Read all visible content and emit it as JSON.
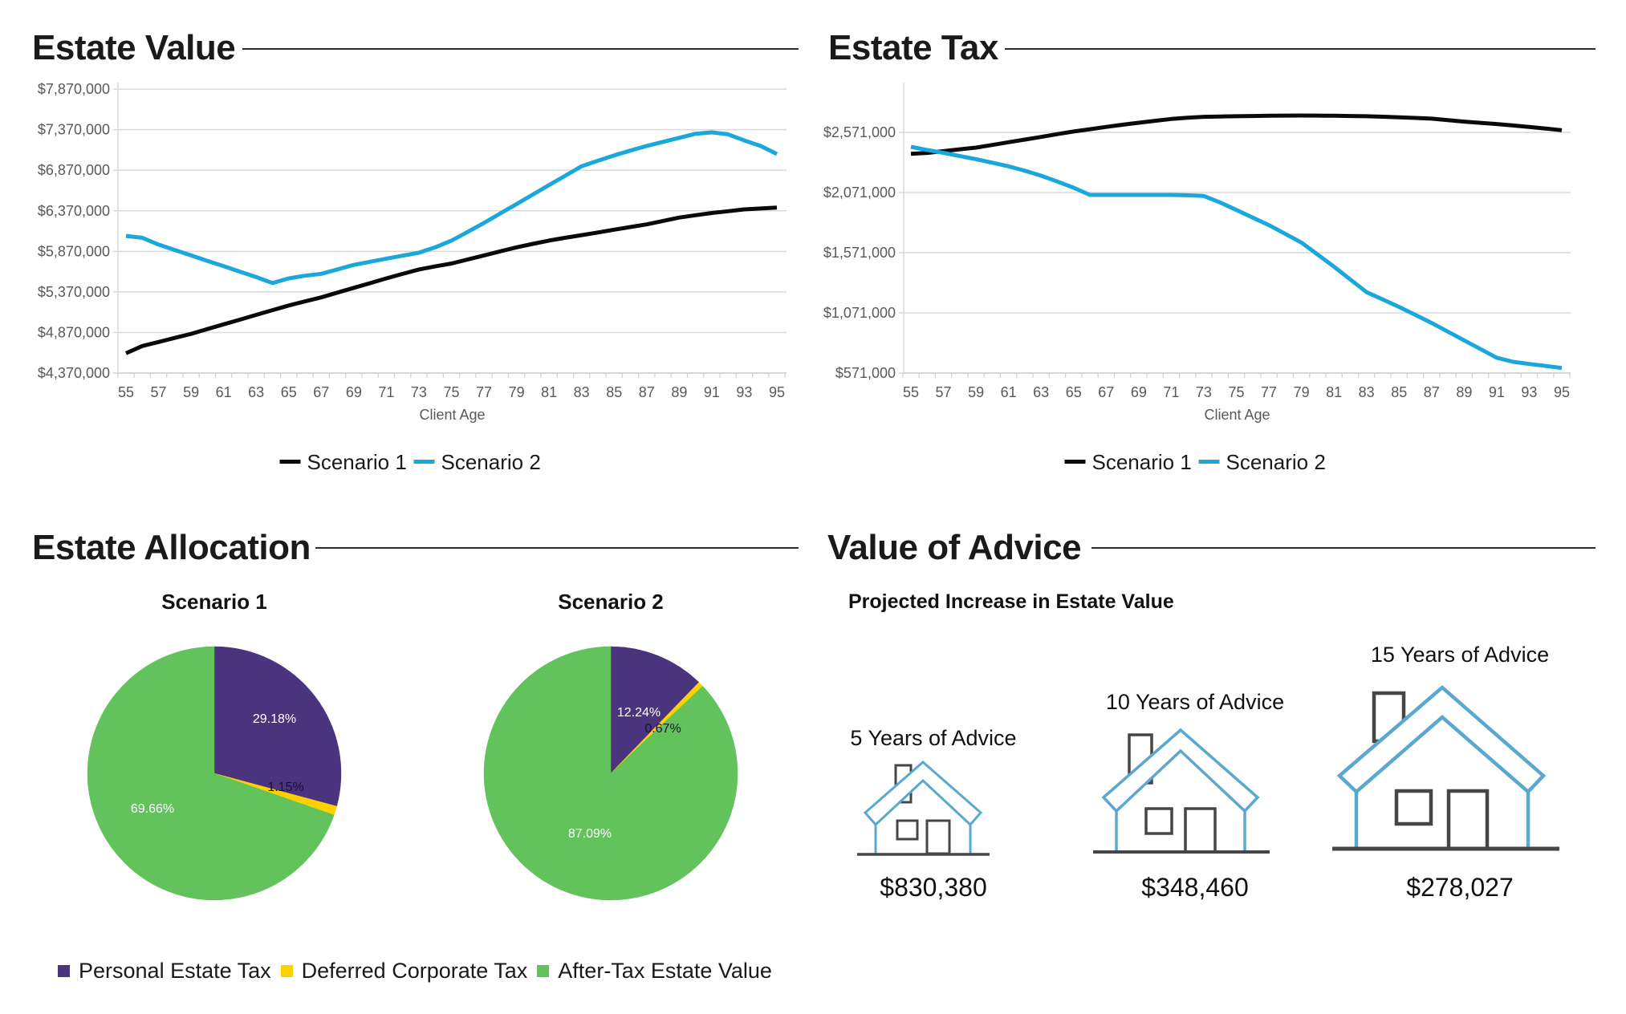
{
  "sections": {
    "estate_value": {
      "title": "Estate Value"
    },
    "estate_tax": {
      "title": "Estate Tax"
    },
    "estate_allocation": {
      "title": "Estate Allocation"
    },
    "value_of_advice": {
      "title": "Value of Advice",
      "subtitle": "Projected Increase in Estate Value"
    }
  },
  "colors": {
    "scenario_1": "#0a0a0a",
    "scenario_2": "#1aa7dc",
    "personal_estate_tax": "#4b347e",
    "deferred_corporate_tax": "#ffd000",
    "after_tax_estate_value": "#62c25b",
    "house_outline": "#5aa8cf",
    "house_detail": "#464646"
  },
  "chart_data": [
    {
      "id": "estate_value",
      "type": "line",
      "title": "Estate Value",
      "xlabel": "Client Age",
      "ylabel": "",
      "x": [
        55,
        56,
        57,
        58,
        59,
        60,
        61,
        62,
        63,
        64,
        65,
        66,
        67,
        68,
        69,
        70,
        71,
        72,
        73,
        74,
        75,
        76,
        77,
        78,
        79,
        80,
        81,
        82,
        83,
        84,
        85,
        86,
        87,
        88,
        89,
        90,
        91,
        92,
        93,
        94,
        95
      ],
      "xticks": [
        "55",
        "57",
        "59",
        "61",
        "63",
        "65",
        "67",
        "69",
        "71",
        "73",
        "75",
        "77",
        "79",
        "81",
        "83",
        "85",
        "87",
        "89",
        "91",
        "93",
        "95"
      ],
      "yticks": [
        "$4,370,000",
        "$4,870,000",
        "$5,370,000",
        "$5,870,000",
        "$6,370,000",
        "$6,870,000",
        "$7,370,000",
        "$7,870,000"
      ],
      "ytick_values": [
        4370000,
        4870000,
        5370000,
        5870000,
        6370000,
        6870000,
        7370000,
        7870000
      ],
      "ylim": [
        4370000,
        7950000
      ],
      "xlim": [
        55,
        95
      ],
      "grid": true,
      "legend_position": "bottom",
      "series": [
        {
          "name": "Scenario 1",
          "color_key": "scenario_1",
          "values": [
            4613000,
            4703000,
            4753000,
            4803000,
            4853000,
            4912000,
            4970000,
            5028000,
            5087000,
            5145000,
            5203000,
            5253000,
            5303000,
            5362000,
            5420000,
            5478000,
            5537000,
            5592000,
            5647000,
            5684000,
            5720000,
            5770000,
            5820000,
            5870000,
            5920000,
            5962000,
            6003000,
            6037000,
            6070000,
            6103000,
            6137000,
            6170000,
            6203000,
            6245000,
            6287000,
            6315000,
            6343000,
            6365000,
            6387000,
            6398000,
            6410000
          ]
        },
        {
          "name": "Scenario 2",
          "color_key": "scenario_2",
          "values": [
            6060000,
            6037000,
            5953000,
            5887000,
            5820000,
            5753000,
            5687000,
            5620000,
            5553000,
            5480000,
            5537000,
            5570000,
            5593000,
            5648000,
            5703000,
            5742000,
            5780000,
            5817000,
            5853000,
            5920000,
            6003000,
            6110000,
            6220000,
            6337000,
            6453000,
            6570000,
            6687000,
            6803000,
            6920000,
            6987000,
            7053000,
            7112000,
            7170000,
            7220000,
            7270000,
            7320000,
            7337000,
            7313000,
            7237000,
            7170000,
            7070000
          ]
        }
      ]
    },
    {
      "id": "estate_tax",
      "type": "line",
      "title": "Estate Tax",
      "xlabel": "Client Age",
      "ylabel": "",
      "x": [
        55,
        56,
        57,
        58,
        59,
        60,
        61,
        62,
        63,
        64,
        65,
        66,
        67,
        68,
        69,
        70,
        71,
        72,
        73,
        74,
        75,
        76,
        77,
        78,
        79,
        80,
        81,
        82,
        83,
        84,
        85,
        86,
        87,
        88,
        89,
        90,
        91,
        92,
        93,
        94,
        95
      ],
      "xticks": [
        "55",
        "57",
        "59",
        "61",
        "63",
        "65",
        "67",
        "69",
        "71",
        "73",
        "75",
        "77",
        "79",
        "81",
        "83",
        "85",
        "87",
        "89",
        "91",
        "93",
        "95"
      ],
      "yticks": [
        "$571,000",
        "$1,071,000",
        "$1,571,000",
        "$2,071,000",
        "$2,571,000"
      ],
      "ytick_values": [
        571000,
        1071000,
        1571000,
        2071000,
        2571000
      ],
      "ylim": [
        571000,
        2984000
      ],
      "xlim": [
        55,
        95
      ],
      "grid": true,
      "legend_position": "bottom",
      "series": [
        {
          "name": "Scenario 1",
          "color_key": "scenario_1",
          "values": [
            2393000,
            2400000,
            2415000,
            2430000,
            2444000,
            2466000,
            2489000,
            2511000,
            2533000,
            2556000,
            2578000,
            2597000,
            2616000,
            2634000,
            2651000,
            2667000,
            2682000,
            2693000,
            2700000,
            2703000,
            2705000,
            2707000,
            2709000,
            2710000,
            2711000,
            2710000,
            2709000,
            2707000,
            2705000,
            2701000,
            2696000,
            2691000,
            2685000,
            2672000,
            2660000,
            2650000,
            2640000,
            2628000,
            2616000,
            2603000,
            2589000
          ]
        },
        {
          "name": "Scenario 2",
          "color_key": "scenario_2",
          "values": [
            2451000,
            2425000,
            2400000,
            2374000,
            2348000,
            2319000,
            2289000,
            2252000,
            2211000,
            2162000,
            2111000,
            2051000,
            2051000,
            2051000,
            2051000,
            2051000,
            2051000,
            2048000,
            2042000,
            1989000,
            1926000,
            1863000,
            1800000,
            1728000,
            1655000,
            1555000,
            1455000,
            1349000,
            1243000,
            1182000,
            1120000,
            1054000,
            987000,
            915000,
            842000,
            770000,
            698000,
            664000,
            646000,
            630000,
            613000
          ]
        }
      ]
    },
    {
      "id": "estate_allocation_scenario_1",
      "type": "pie",
      "title": "Scenario 1",
      "labels": [
        "Personal Estate Tax",
        "Deferred Corporate Tax",
        "After-Tax Estate Value"
      ],
      "values": [
        29.18,
        1.15,
        69.66
      ],
      "value_labels": [
        "29.18%",
        "1.15%",
        "69.66%"
      ],
      "legend_position": "bottom"
    },
    {
      "id": "estate_allocation_scenario_2",
      "type": "pie",
      "title": "Scenario 2",
      "labels": [
        "Personal Estate Tax",
        "Deferred Corporate Tax",
        "After-Tax Estate Value"
      ],
      "values": [
        12.24,
        0.67,
        87.09
      ],
      "value_labels": [
        "12.24%",
        "0.67%",
        "87.09%"
      ],
      "legend_position": "bottom"
    }
  ],
  "line_legend": [
    "Scenario 1",
    "Scenario 2"
  ],
  "pie_legend": [
    {
      "label": "Personal Estate Tax",
      "color_key": "personal_estate_tax"
    },
    {
      "label": "Deferred Corporate Tax",
      "color_key": "deferred_corporate_tax"
    },
    {
      "label": "After-Tax Estate Value",
      "color_key": "after_tax_estate_value"
    }
  ],
  "advice": [
    {
      "label": "5 Years of Advice",
      "value": "$830,380",
      "icon": "house-icon"
    },
    {
      "label": "10 Years of Advice",
      "value": "$348,460",
      "icon": "house-icon"
    },
    {
      "label": "15 Years of Advice",
      "value": "$278,027",
      "icon": "house-icon"
    }
  ]
}
